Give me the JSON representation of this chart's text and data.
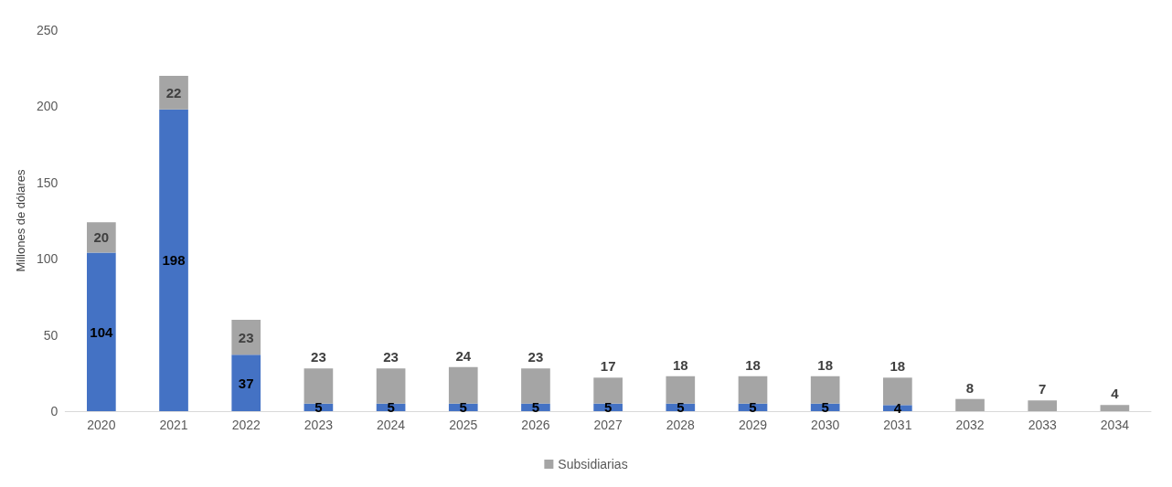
{
  "chart_data": {
    "type": "bar",
    "stacked": true,
    "ylabel": "Millones de dólares",
    "categories": [
      "2020",
      "2021",
      "2022",
      "2023",
      "2024",
      "2025",
      "2026",
      "2027",
      "2028",
      "2029",
      "2030",
      "2031",
      "2032",
      "2033",
      "2034"
    ],
    "series": [
      {
        "color": "#4472c4",
        "values": [
          104,
          198,
          37,
          5,
          5,
          5,
          5,
          5,
          5,
          5,
          5,
          4,
          null,
          null,
          null
        ]
      },
      {
        "name": "Subsidiarias",
        "color": "#a5a5a5",
        "values": [
          20,
          22,
          23,
          23,
          23,
          24,
          23,
          17,
          18,
          18,
          18,
          18,
          8,
          7,
          4
        ]
      }
    ],
    "ylim": [
      0,
      250
    ],
    "yticks": [
      0,
      50,
      100,
      150,
      200,
      250
    ],
    "grid": false,
    "legend": "bottom",
    "data_labels": true
  }
}
